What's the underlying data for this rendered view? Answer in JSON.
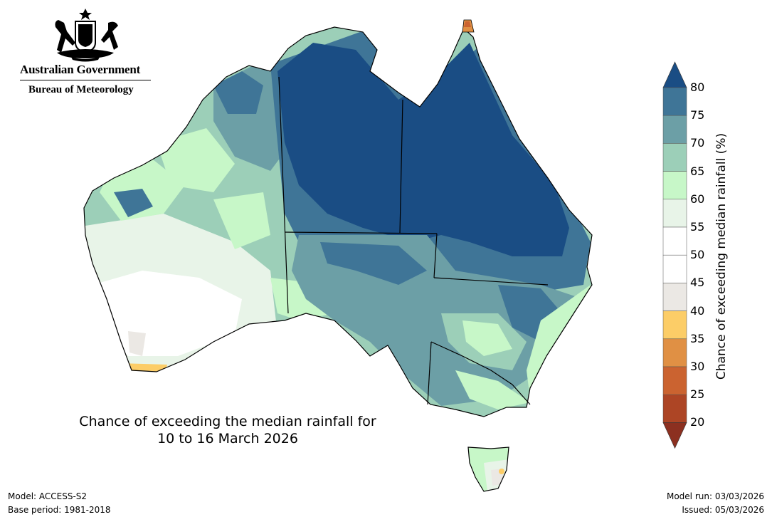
{
  "header": {
    "agency": "Australian Government",
    "bureau": "Bureau of Meteorology"
  },
  "map": {
    "title_line1": "Chance of exceeding the median rainfall for",
    "title_line2": "10 to 16 March 2026"
  },
  "legend": {
    "title": "Chance of exceeding median rainfall (%)",
    "ticks": [
      "80",
      "75",
      "70",
      "65",
      "60",
      "55",
      "50",
      "45",
      "40",
      "35",
      "30",
      "25",
      "20"
    ],
    "colors": {
      "above_80": "#1a4d84",
      "75_80": "#3f7597",
      "70_75": "#6c9fa6",
      "65_70": "#9ccfb8",
      "60_65": "#c7f7c8",
      "55_60": "#e8f4e8",
      "50_55": "#ffffff",
      "45_50": "#ffffff",
      "40_45": "#ebe8e4",
      "35_40": "#fccd67",
      "30_35": "#e09044",
      "25_30": "#cb6330",
      "20_25": "#ad4525",
      "below_20": "#8c3020"
    }
  },
  "footer": {
    "model": "Model: ACCESS-S2",
    "base_period": "Base period: 1981-2018",
    "model_run": "Model run: 03/03/2026",
    "issued": "Issued: 05/03/2026"
  }
}
